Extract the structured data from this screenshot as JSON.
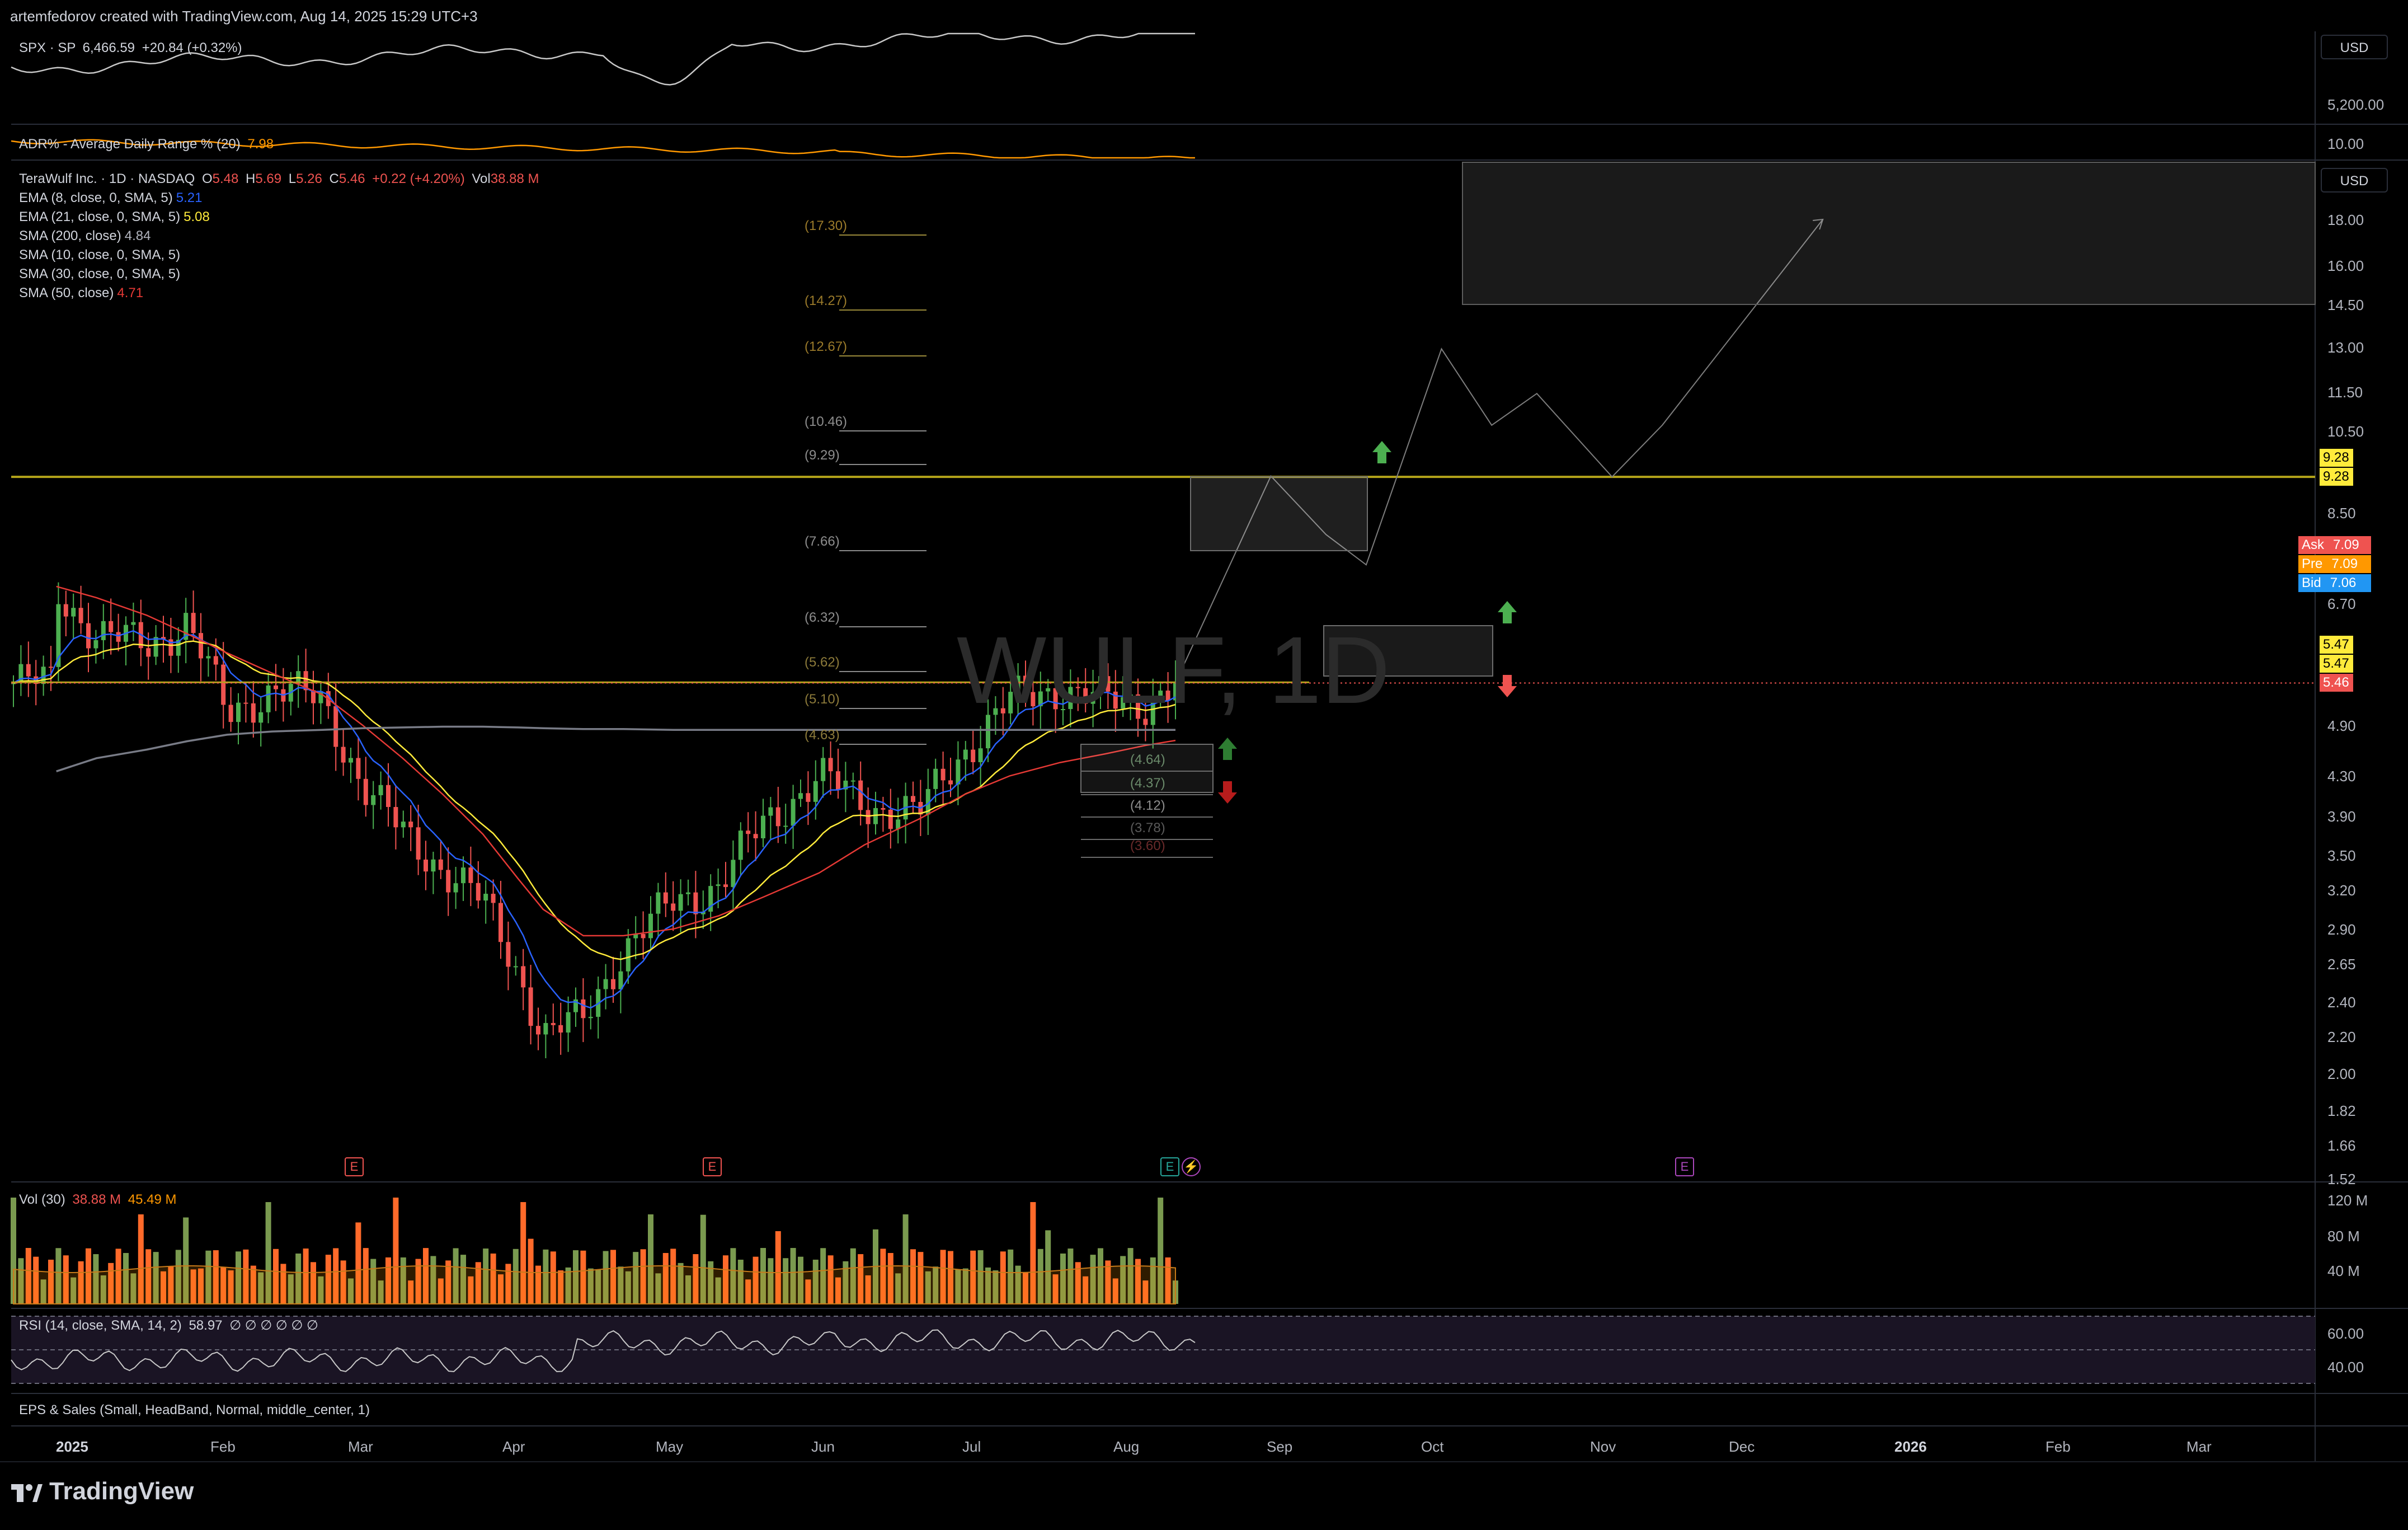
{
  "attribution": "artemfedorov created with TradingView.com, Aug 14, 2025 15:29 UTC+3",
  "branding": {
    "logo_text": "TradingView"
  },
  "colors": {
    "background": "#000000",
    "up": "#4caf50",
    "down": "#ef5350",
    "ema8": "#2962ff",
    "ema21": "#ffeb3b",
    "sma200": "#787b86",
    "sma50": "#e53935",
    "level_line": "#b5a51a",
    "vol_up": "#7a9a4f",
    "vol_down": "#ff6a2a"
  },
  "panes": {
    "spx": {
      "label": "SPX · SP",
      "value": "6,466.59",
      "change": "+20.84 (+0.32%)",
      "scale_label": "5,200.00",
      "currency": "USD"
    },
    "adr": {
      "label": "ADR% - Average Daily Range % (20)",
      "value": "7.98",
      "scale_label": "10.00"
    },
    "main": {
      "symbol": "TeraWulf Inc. · 1D · NASDAQ",
      "ohlc": {
        "o_label": "O",
        "o": "5.48",
        "h_label": "H",
        "h": "5.69",
        "l_label": "L",
        "l": "5.26",
        "c_label": "C",
        "c": "5.46",
        "chg": "+0.22 (+4.20%)",
        "vol_label": "Vol",
        "vol": "38.88 M"
      },
      "indicators": [
        {
          "label": "EMA (8, close, 0, SMA, 5)",
          "value": "5.21",
          "color": "#2962ff"
        },
        {
          "label": "EMA (21, close, 0, SMA, 5)",
          "value": "5.08",
          "color": "#ffeb3b"
        },
        {
          "label": "SMA (200, close)",
          "value": "4.84",
          "color": "#9598a1"
        },
        {
          "label": "SMA (10, close, 0, SMA, 5)",
          "value": "",
          "color": "#9598a1"
        },
        {
          "label": "SMA (30, close, 0, SMA, 5)",
          "value": "",
          "color": "#9598a1"
        },
        {
          "label": "SMA (50, close)",
          "value": "4.71",
          "color": "#e53935"
        }
      ],
      "currency": "USD",
      "watermark": "WULF, 1D",
      "price_scale": [
        "18.00",
        "16.00",
        "14.50",
        "13.00",
        "11.50",
        "10.50",
        "8.50",
        "6.70",
        "4.90",
        "4.30",
        "3.90",
        "3.50",
        "3.20",
        "2.90",
        "2.65",
        "2.40",
        "2.20",
        "2.00",
        "1.82",
        "1.66",
        "1.52"
      ],
      "badges": [
        {
          "label": "",
          "value": "9.28",
          "bg": "#ffeb3b",
          "fg": "#000000"
        },
        {
          "label": "",
          "value": "9.28",
          "bg": "#ffeb3b",
          "fg": "#000000"
        },
        {
          "label": "Ask",
          "value": "7.09",
          "bg": "#ef5350",
          "fg": "#ffffff"
        },
        {
          "label": "Pre",
          "value": "7.09",
          "bg": "#ff9800",
          "fg": "#ffffff"
        },
        {
          "label": "Bid",
          "value": "7.06",
          "bg": "#2196f3",
          "fg": "#ffffff"
        },
        {
          "label": "",
          "value": "5.47",
          "bg": "#ffeb3b",
          "fg": "#000000"
        },
        {
          "label": "",
          "value": "5.47",
          "bg": "#ffeb3b",
          "fg": "#000000"
        },
        {
          "label": "",
          "value": "5.46",
          "bg": "#ef5350",
          "fg": "#ffffff"
        }
      ],
      "fib_upper": [
        "(17.30)",
        "(14.27)",
        "(12.67)",
        "(10.46)",
        "(9.29)",
        "(7.66)",
        "(6.32)",
        "(5.62)",
        "(5.10)",
        "(4.63)"
      ],
      "fib_lower": [
        "(4.64)",
        "(4.37)",
        "(4.12)",
        "(3.78)",
        "(3.60)"
      ],
      "earnings": [
        "E",
        "E",
        "E",
        "E"
      ]
    },
    "volume": {
      "label": "Vol (30)",
      "value1": "38.88 M",
      "value2": "45.49 M",
      "scale": [
        "120 M",
        "80 M",
        "40 M"
      ]
    },
    "rsi": {
      "label": "RSI (14, close, SMA, 14, 2)",
      "value": "58.97",
      "extra": "∅ ∅ ∅ ∅ ∅ ∅",
      "scale": [
        "60.00",
        "40.00"
      ]
    },
    "eps": {
      "label": "EPS & Sales (Small, HeadBand, Normal, middle_center, 1)"
    }
  },
  "time_axis": [
    "2025",
    "Feb",
    "Mar",
    "Apr",
    "May",
    "Jun",
    "Jul",
    "Aug",
    "Sep",
    "Oct",
    "Nov",
    "Dec",
    "2026",
    "Feb",
    "Mar"
  ],
  "chart_data": {
    "type": "line",
    "title": "TeraWulf Inc. · 1D · NASDAQ",
    "x": [
      "2025-01-02",
      "2025-01-10",
      "2025-01-20",
      "2025-01-28",
      "2025-02-05",
      "2025-02-14",
      "2025-02-24",
      "2025-03-04",
      "2025-03-12",
      "2025-03-20",
      "2025-03-28",
      "2025-04-04",
      "2025-04-09",
      "2025-04-17",
      "2025-04-25",
      "2025-05-05",
      "2025-05-14",
      "2025-05-23",
      "2025-06-03",
      "2025-06-12",
      "2025-06-23",
      "2025-07-02",
      "2025-07-11",
      "2025-07-21",
      "2025-07-30",
      "2025-08-07",
      "2025-08-13"
    ],
    "series": [
      {
        "name": "TeraWulf Inc.",
        "values": [
          6.9,
          6.2,
          6.0,
          6.4,
          5.0,
          5.4,
          5.2,
          4.2,
          3.7,
          3.4,
          3.1,
          2.6,
          2.2,
          2.3,
          2.75,
          3.1,
          3.25,
          3.8,
          4.3,
          4.0,
          3.9,
          4.6,
          5.2,
          5.4,
          5.2,
          5.2,
          5.46
        ]
      },
      {
        "name": "SMA (50, close)",
        "values": [
          7.0,
          6.8,
          6.5,
          6.2,
          5.9,
          5.6,
          5.3,
          4.9,
          4.5,
          4.1,
          3.7,
          3.3,
          3.05,
          2.85,
          2.85,
          2.9,
          3.0,
          3.15,
          3.35,
          3.6,
          3.85,
          4.1,
          4.3,
          4.45,
          4.55,
          4.65,
          4.71
        ]
      },
      {
        "name": "SMA (200, close)",
        "values": [
          4.35,
          4.5,
          4.6,
          4.7,
          4.78,
          4.82,
          4.84,
          4.86,
          4.87,
          4.88,
          4.88,
          4.87,
          4.86,
          4.85,
          4.85,
          4.84,
          4.84,
          4.84,
          4.84,
          4.84,
          4.84,
          4.84,
          4.84,
          4.84,
          4.84,
          4.84,
          4.84
        ]
      }
    ],
    "projection": {
      "x": [
        "2025-08-13",
        "2025-09-01",
        "2025-09-12",
        "2025-09-20",
        "2025-10-05",
        "2025-10-15",
        "2025-10-24",
        "2025-11-08",
        "2025-11-18",
        "2025-12-20"
      ],
      "values": [
        5.46,
        9.3,
        8.0,
        7.4,
        12.9,
        10.6,
        11.5,
        9.28,
        10.6,
        18.0
      ]
    },
    "levels": [
      9.28,
      5.47
    ],
    "ylabel": "",
    "xlabel": ""
  }
}
